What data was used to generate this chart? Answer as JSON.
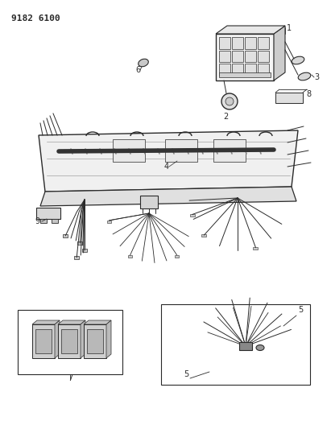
{
  "title": "9182 6100",
  "bg_color": "#ffffff",
  "lc": "#2a2a2a",
  "fig_width": 4.11,
  "fig_height": 5.33,
  "dpi": 100
}
